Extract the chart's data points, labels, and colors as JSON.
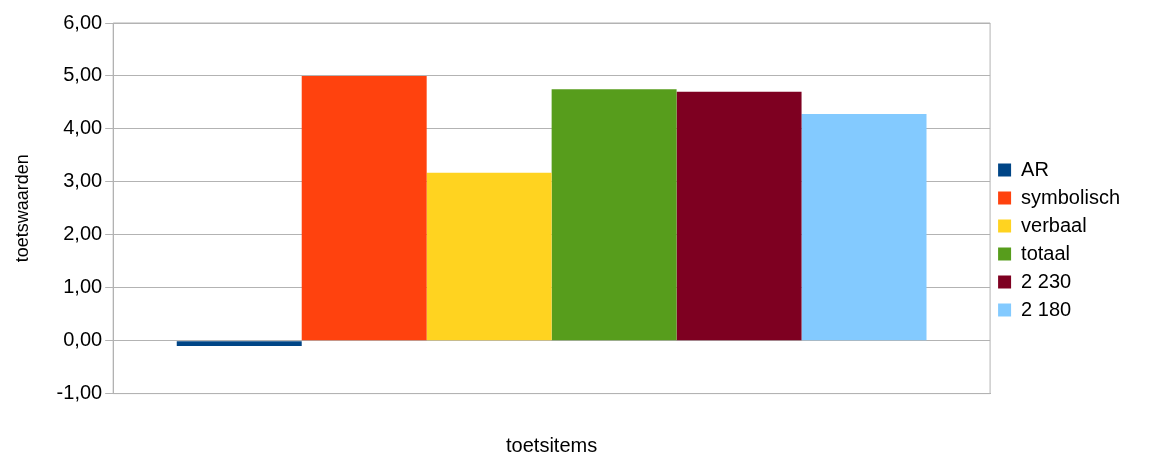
{
  "chart_data": {
    "type": "bar",
    "xlabel": "toetsitems",
    "ylabel": "toetswaarden",
    "categories": [
      null
    ],
    "series": [
      {
        "name": "AR",
        "color": "#004586",
        "values": [
          -0.1
        ]
      },
      {
        "name": "symbolisch",
        "color": "#ff420e",
        "values": [
          5.0
        ]
      },
      {
        "name": "verbaal",
        "color": "#ffd320",
        "values": [
          3.17
        ]
      },
      {
        "name": "totaal",
        "color": "#579d1c",
        "values": [
          4.75
        ]
      },
      {
        "name": "2 230",
        "color": "#7e0021",
        "values": [
          4.7
        ]
      },
      {
        "name": "2 180",
        "color": "#83caff",
        "values": [
          4.28
        ]
      }
    ],
    "ylim": [
      -1,
      6
    ],
    "yticks": [
      {
        "value": -1,
        "label": "-1,00"
      },
      {
        "value": 0,
        "label": "0,00"
      },
      {
        "value": 1,
        "label": "1,00"
      },
      {
        "value": 2,
        "label": "2,00"
      },
      {
        "value": 3,
        "label": "3,00"
      },
      {
        "value": 4,
        "label": "4,00"
      },
      {
        "value": 5,
        "label": "5,00"
      },
      {
        "value": 6,
        "label": "6,00"
      }
    ],
    "grid": "y",
    "legend": "right"
  }
}
